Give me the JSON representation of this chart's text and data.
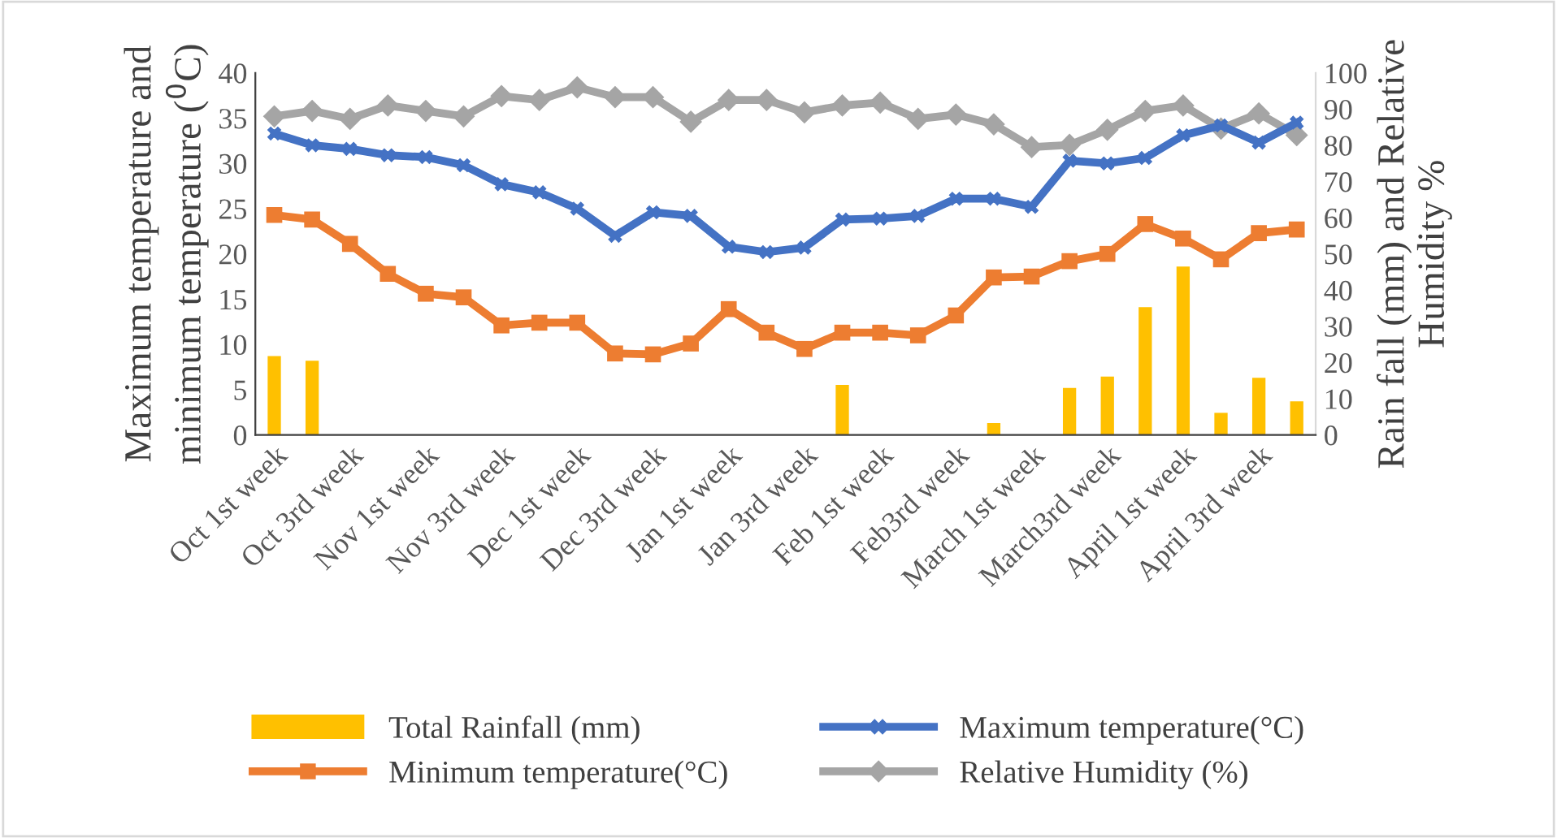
{
  "chart_data": {
    "type": "line",
    "ylabel": "Maximum temperature and minimum temperature ($^{0}$C)",
    "y2label": "Rain fall (mm) and Relative Humidity %",
    "categories": [
      "Oct 1st week",
      null,
      "Oct 3rd week",
      null,
      "Nov 1st week",
      null,
      "Nov 3rd week",
      null,
      "Dec 1st week",
      null,
      "Dec 3rd week",
      null,
      "Jan 1st week",
      null,
      "Jan 3rd week",
      null,
      "Feb 1st week",
      null,
      "Feb3rd week",
      null,
      "March 1st week",
      null,
      "March3rd week",
      null,
      "April 1st week",
      null,
      "April 3rd week",
      null
    ],
    "ylim": [
      0,
      40
    ],
    "yticks": [
      0,
      5,
      10,
      15,
      20,
      25,
      30,
      35,
      40
    ],
    "y2lim": [
      0,
      100
    ],
    "y2ticks": [
      0,
      10,
      20,
      30,
      40,
      50,
      60,
      70,
      80,
      90,
      100
    ],
    "grid": false,
    "legend": "bottom",
    "series": [
      {
        "name": "Total Rainfall (mm)",
        "type": "bar",
        "axis": "y2",
        "color": "#ffc000",
        "values": [
          21.8,
          20.5,
          0,
          0,
          0,
          0,
          0,
          0,
          0,
          0,
          0,
          0,
          0,
          0,
          0,
          13.8,
          0,
          0,
          0,
          3.3,
          0,
          13.0,
          16.1,
          35.3,
          46.5,
          6.1,
          15.8,
          9.3
        ]
      },
      {
        "name": "Maximum temperature(°C)",
        "color": "#4472c4",
        "marker": "cross",
        "values": [
          33.3,
          32.0,
          31.6,
          30.9,
          30.7,
          29.8,
          27.7,
          26.8,
          25.0,
          22.0,
          24.6,
          24.2,
          20.8,
          20.2,
          20.7,
          23.8,
          23.9,
          24.2,
          26.1,
          26.1,
          25.2,
          30.3,
          30.0,
          30.6,
          33.1,
          34.2,
          32.3,
          34.5
        ]
      },
      {
        "name": "Minimum temperature(°C)",
        "color": "#ed7d31",
        "marker": "square",
        "values": [
          24.3,
          23.8,
          21.1,
          17.8,
          15.6,
          15.2,
          12.1,
          12.4,
          12.4,
          9.0,
          8.9,
          10.1,
          13.9,
          11.3,
          9.5,
          11.3,
          11.3,
          11.0,
          13.2,
          17.4,
          17.5,
          19.2,
          20.0,
          23.3,
          21.7,
          19.4,
          22.3,
          22.7
        ]
      },
      {
        "name": "Relative Humidity (%)",
        "axis": "y2",
        "color": "#a5a5a5",
        "marker": "diamond",
        "values": [
          88.0,
          89.5,
          87.3,
          91.0,
          89.5,
          88.0,
          93.6,
          92.5,
          96.0,
          93.3,
          93.3,
          86.5,
          92.5,
          92.5,
          89.1,
          91.0,
          91.8,
          87.3,
          88.5,
          85.8,
          79.5,
          80.1,
          84.3,
          89.5,
          91.0,
          84.6,
          88.8,
          82.8
        ]
      }
    ]
  }
}
